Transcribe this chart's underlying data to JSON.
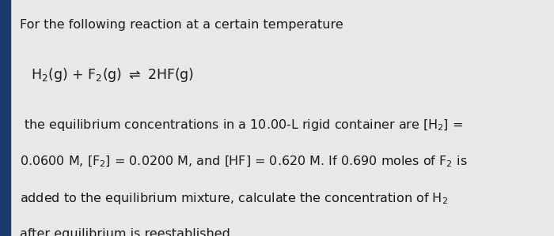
{
  "bg_color": "#e8e8e8",
  "left_strip_color": "#1a3a6b",
  "text_color": "#1a1a1a",
  "line1": "For the following reaction at a certain temperature",
  "font_size_main": 11.5,
  "font_size_reaction": 12.5,
  "left_bar_width": 0.018,
  "font_family": "DejaVu Sans"
}
